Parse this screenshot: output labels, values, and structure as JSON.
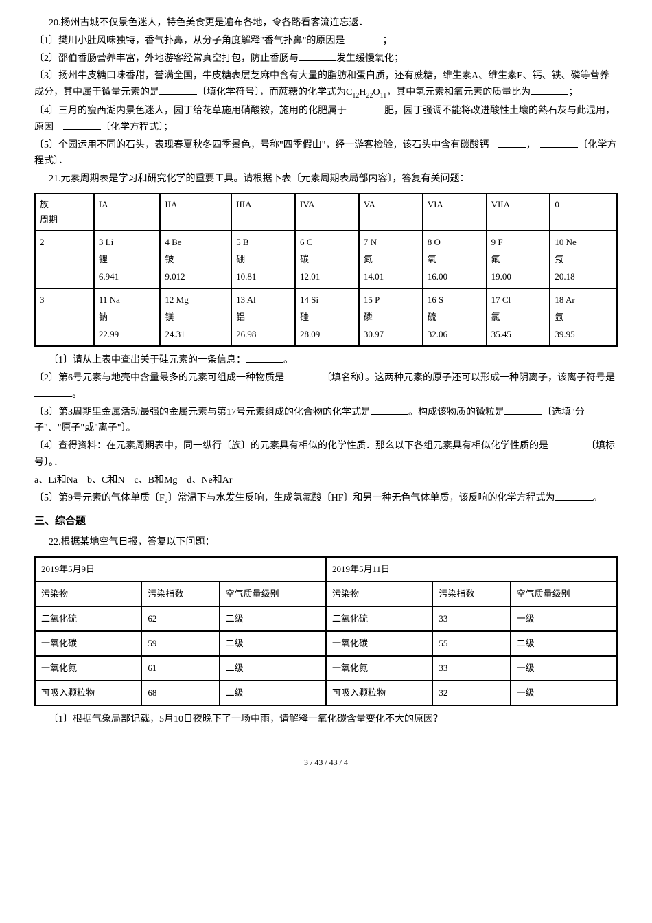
{
  "q20": {
    "intro": "20.扬州古城不仅景色迷人，特色美食更是遍布各地，令各路看客流连忘返．",
    "p1": "〔1〕樊川小肚风味独特，香气扑鼻，从分子角度解释\"香气扑鼻\"的原因是",
    "p1_suffix": "；",
    "p2": "〔2〕邵伯香肠营养丰富，外地游客经常真空打包，防止香肠与",
    "p2_suffix": "发生缓慢氧化；",
    "p3a": "〔3〕扬州牛皮糖口味香甜，誉满全国，牛皮糖表层芝麻中含有大量的脂肪和蛋白质，还有蔗糖，维生素A、维生素E、钙、铁、磷等营养成分，其中属于微量元素的是",
    "p3b": "〔填化学符号〕，而蔗糖的化学式为C",
    "p3c": "，其中氢元素和氧元素的质量比为",
    "p3_suffix": "；",
    "p4a": "〔4〕三月的瘦西湖内景色迷人，园丁给花草施用硝酸铵，施用的化肥属于",
    "p4b": "肥，园丁强调不能将改进酸性土壤的熟石灰与此混用，原因",
    "p4_suffix": "〔化学方程式〕；",
    "p5a": "〔5〕个园运用不同的石头，表现春夏秋冬四季景色，号称\"四季假山\"，经一游客检验，该石头中含有碳酸钙",
    "p5b": "，",
    "p5_suffix": "〔化学方程式〕．",
    "formula_sub1": "12",
    "formula_sub2": "22",
    "formula_sub3": "11",
    "formula_h": "H",
    "formula_o": "O"
  },
  "q21": {
    "intro": "21.元素周期表是学习和研究化学的重要工具。请根据下表〔元素周期表局部内容〕，答复有关问题：",
    "header": {
      "zu": "族",
      "zhouqi": "周期",
      "ia": "IA",
      "iia": "IIA",
      "iiia": "IIIA",
      "iva": "IVA",
      "va": "VA",
      "via": "VIA",
      "viia": "VIIA",
      "zero": "0"
    },
    "row2": {
      "period": "2",
      "cells": [
        {
          "num": "3 Li",
          "name": "锂",
          "mass": "6.941"
        },
        {
          "num": "4 Be",
          "name": "铍",
          "mass": "9.012"
        },
        {
          "num": "5 B",
          "name": "硼",
          "mass": "10.81"
        },
        {
          "num": "6 C",
          "name": "碳",
          "mass": "12.01"
        },
        {
          "num": "7 N",
          "name": "氮",
          "mass": "14.01"
        },
        {
          "num": "8 O",
          "name": "氧",
          "mass": "16.00"
        },
        {
          "num": "9 F",
          "name": "氟",
          "mass": "19.00"
        },
        {
          "num": "10 Ne",
          "name": "氖",
          "mass": "20.18"
        }
      ]
    },
    "row3": {
      "period": "3",
      "cells": [
        {
          "num": "11 Na",
          "name": "钠",
          "mass": "22.99"
        },
        {
          "num": "12 Mg",
          "name": "镁",
          "mass": "24.31"
        },
        {
          "num": "13 Al",
          "name": "铝",
          "mass": "26.98"
        },
        {
          "num": "14 Si",
          "name": "硅",
          "mass": "28.09"
        },
        {
          "num": "15 P",
          "name": "磷",
          "mass": "30.97"
        },
        {
          "num": "16 S",
          "name": "硫",
          "mass": "32.06"
        },
        {
          "num": "17 Cl",
          "name": "氯",
          "mass": "35.45"
        },
        {
          "num": "18 Ar",
          "name": "氩",
          "mass": "39.95"
        }
      ]
    },
    "p1": "〔1〕请从上表中查出关于硅元素的一条信息：",
    "p1_suffix": "。",
    "p2a": "〔2〕第6号元素与地壳中含量最多的元素可组成一种物质是",
    "p2b": "〔填名称〕。这两种元素的原子还可以形成一种阴离子，该离子符号是",
    "p2_suffix": "。",
    "p3a": "〔3〕第3周期里金属活动最强的金属元素与第17号元素组成的化合物的化学式是",
    "p3b": "。构成该物质的微粒是",
    "p3_suffix": "〔选填\"分子\"、\"原子\"或\"离子\"〕。",
    "p4a": "〔4〕查得资料：在元素周期表中，同一纵行〔族〕的元素具有相似的化学性质．那么以下各组元素具有相似化学性质的是",
    "p4_suffix": "〔填标号〕。．",
    "p4_opts": "a、Li和Na　b、C和N　c、B和Mg　d、Ne和Ar",
    "p5a": "〔5〕第9号元素的气体单质〔F₂〕常温下与水发生反响，生成氢氟酸〔HF〕和另一种无色气体单质，该反响的化学方程式为",
    "p5_suffix": "。"
  },
  "section3": "三、综合题",
  "q22": {
    "intro": "22.根据某地空气日报，答复以下问题：",
    "date1": "2019年5月9日",
    "date2": "2019年5月11日",
    "headers": {
      "pollutant": "污染物",
      "index": "污染指数",
      "level": "空气质量级别"
    },
    "rows": [
      {
        "name": "二氧化硫",
        "i1": "62",
        "l1": "二级",
        "i2": "33",
        "l2": "一级"
      },
      {
        "name": "一氧化碳",
        "i1": "59",
        "l1": "二级",
        "i2": "55",
        "l2": "二级"
      },
      {
        "name": "一氧化氮",
        "i1": "61",
        "l1": "二级",
        "i2": "33",
        "l2": "一级"
      },
      {
        "name": "可吸入颗粒物",
        "i1": "68",
        "l1": "二级",
        "i2": "32",
        "l2": "一级"
      }
    ],
    "p1": "〔1〕根据气象局部记载，5月10日夜晚下了一场中雨，请解释一氧化碳含量变化不大的原因？"
  },
  "footer": "3 / 43 / 43 / 4"
}
